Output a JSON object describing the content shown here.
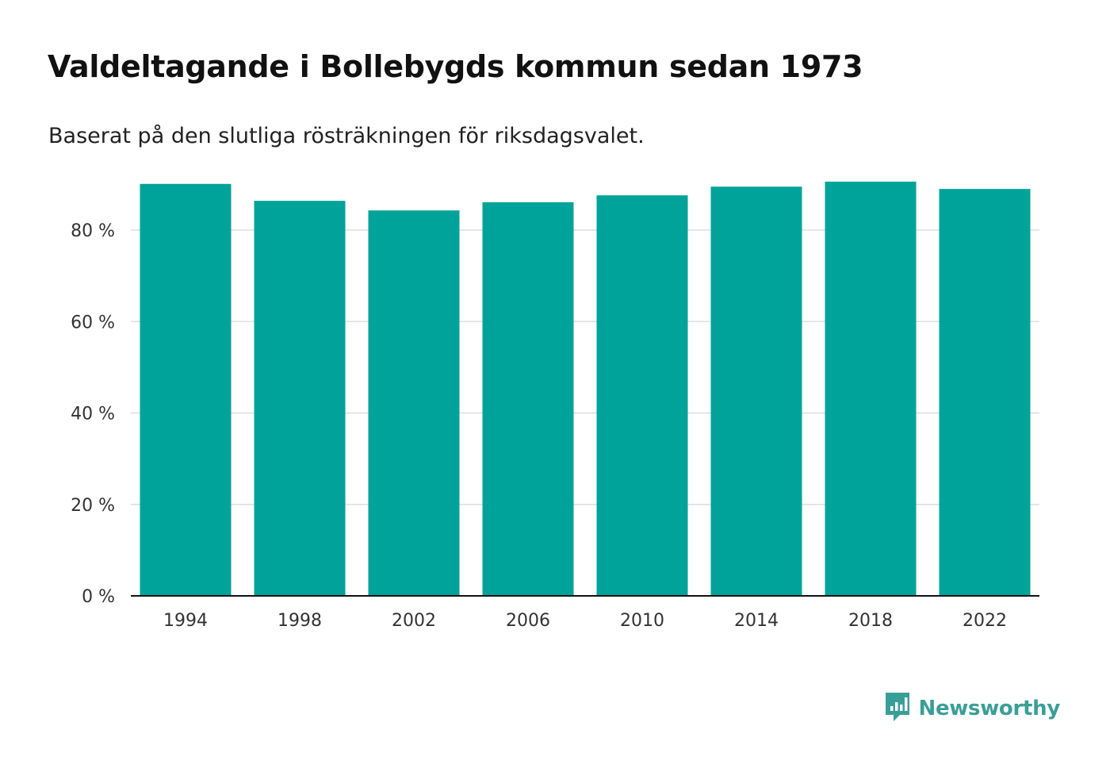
{
  "header": {
    "title": "Valdeltagande i Bollebygds kommun sedan 1973",
    "subtitle": "Baserat på den slutliga rösträkningen för riksdagsvalet."
  },
  "brand": {
    "name": "Newsworthy",
    "icon": "newsworthy-logo-icon",
    "color": "#3a9e98"
  },
  "colors": {
    "bar": "#00a39a",
    "grid": "#dddddd",
    "axis": "#111111"
  },
  "chart_data": {
    "type": "bar",
    "title": "Valdeltagande i Bollebygds kommun sedan 1973",
    "subtitle": "Baserat på den slutliga rösträkningen för riksdagsvalet.",
    "categories": [
      "1994",
      "1998",
      "2002",
      "2006",
      "2010",
      "2014",
      "2018",
      "2022"
    ],
    "values": [
      90.1,
      86.4,
      84.3,
      86.1,
      87.6,
      89.5,
      90.6,
      89.0
    ],
    "xlabel": "",
    "ylabel": "",
    "ylim": [
      0,
      90
    ],
    "yticks": [
      0,
      20,
      40,
      60,
      80
    ],
    "ytick_labels": [
      "0 %",
      "20 %",
      "40 %",
      "60 %",
      "80 %"
    ],
    "grid": true
  }
}
